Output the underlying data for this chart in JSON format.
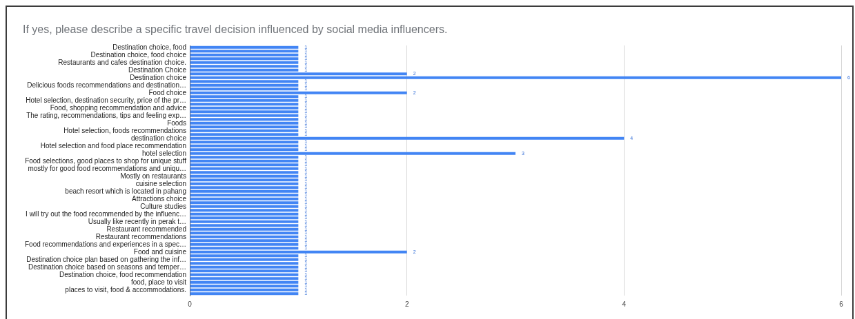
{
  "chart_data": {
    "type": "bar",
    "orientation": "horizontal",
    "title": "If yes, please describe a specific travel decision influenced by social media influencers.",
    "categories": [
      "Destination choice, food",
      null,
      "Destination choice, food choice",
      null,
      "Restaurants and cafes destination choice.",
      null,
      "Destination Choice",
      null,
      "Destination choice",
      null,
      "Delicious foods recommendations and destination…",
      null,
      "Food choice",
      null,
      "Hotel selection, destination security, price of the pr…",
      null,
      "Food, shopping recommendation and advice",
      null,
      "The rating, recommendations, tips and feeling exp…",
      null,
      "Foods",
      null,
      "Hotel selection, foods recommendations",
      null,
      "destination choice",
      null,
      "Hotel selection and food place recommendation",
      null,
      "hotel selection",
      null,
      "Food selections, good places to shop for unique stuff",
      null,
      "mostly for good food recommendations and uniqu…",
      null,
      "Mostly on restaurants",
      null,
      "cuisine selection",
      null,
      "beach resort which is located in pahang",
      null,
      "Attractions choice",
      null,
      "Culture studies",
      null,
      "I will try out the food recommended by the influenc…",
      null,
      "Usually like recently in perak t…",
      null,
      "Restaurant recommended",
      null,
      "Restaurant recommendations",
      null,
      "Food recommendations and experiences in a spec…",
      null,
      "Food and cuisine",
      null,
      "Destination choice plan based on gathering the inf…",
      null,
      "Destination choice based on seasons and temper…",
      null,
      "Destination choice, food recommendation",
      null,
      "food, place to visit",
      null,
      "places to visit, food & accommodations.",
      null
    ],
    "values": [
      1,
      1,
      1,
      1,
      1,
      1,
      1,
      2,
      6,
      1,
      1,
      1,
      2,
      1,
      1,
      1,
      1,
      1,
      1,
      1,
      1,
      1,
      1,
      1,
      4,
      1,
      1,
      1,
      3,
      1,
      1,
      1,
      1,
      1,
      1,
      1,
      1,
      1,
      1,
      1,
      1,
      1,
      1,
      1,
      1,
      1,
      1,
      1,
      1,
      1,
      1,
      1,
      1,
      1,
      2,
      1,
      1,
      1,
      1,
      1,
      1,
      1,
      1,
      1,
      1,
      1
    ],
    "color": "#4285f4",
    "xlim": [
      0,
      6
    ],
    "xticks": [
      0,
      2,
      4,
      6
    ],
    "grid": "x",
    "data_labels": true
  }
}
